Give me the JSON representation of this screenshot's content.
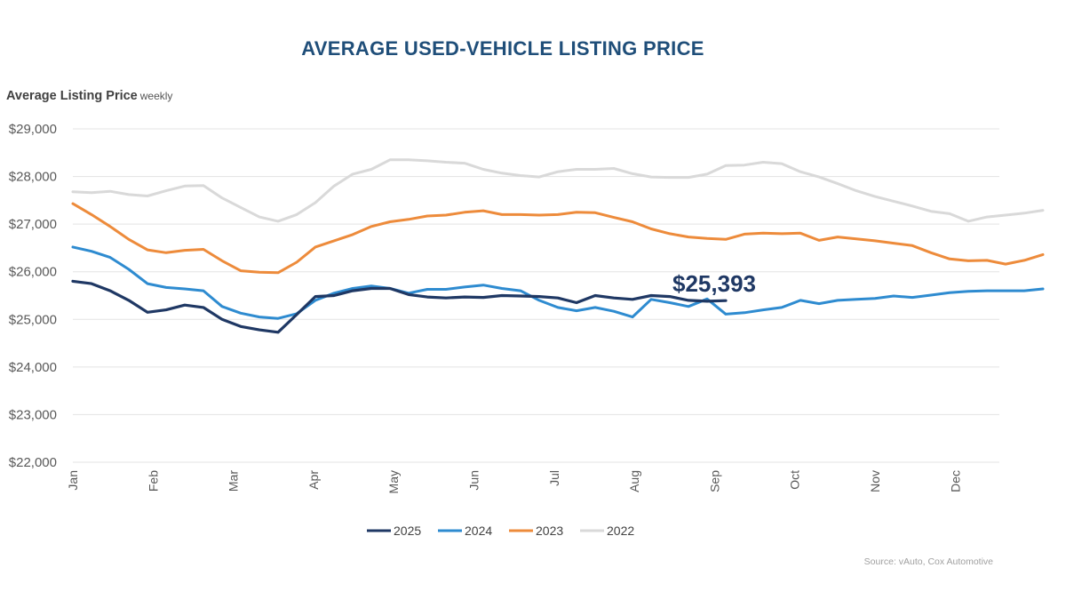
{
  "chart_data": {
    "type": "line",
    "title": "AVERAGE USED-VEHICLE LISTING PRICE",
    "ylabel_main": "Average Listing Price",
    "ylabel_sub": "weekly",
    "source": "Source: vAuto, Cox Automotive",
    "callout": "$25,393",
    "ylim": [
      22000,
      29000
    ],
    "y_ticks": [
      {
        "value": 22000,
        "label": "$22,000"
      },
      {
        "value": 23000,
        "label": "$23,000"
      },
      {
        "value": 24000,
        "label": "$24,000"
      },
      {
        "value": 25000,
        "label": "$25,000"
      },
      {
        "value": 26000,
        "label": "$26,000"
      },
      {
        "value": 27000,
        "label": "$27,000"
      },
      {
        "value": 28000,
        "label": "$28,000"
      },
      {
        "value": 29000,
        "label": "$29,000"
      }
    ],
    "months": [
      "Jan",
      "Feb",
      "Mar",
      "Apr",
      "May",
      "Jun",
      "Jul",
      "Aug",
      "Sep",
      "Oct",
      "Nov",
      "Dec"
    ],
    "weeks_per_month": 4.3,
    "legend_position": "bottom",
    "series": [
      {
        "name": "2025",
        "color": "#1f3864",
        "values": [
          25800,
          25750,
          25600,
          25400,
          25150,
          25200,
          25300,
          25250,
          25000,
          24850,
          24780,
          24730,
          25100,
          25480,
          25500,
          25600,
          25650,
          25650,
          25520,
          25470,
          25450,
          25470,
          25460,
          25500,
          25490,
          25480,
          25450,
          25350,
          25500,
          25450,
          25420,
          25500,
          25480,
          25400,
          25380,
          25393
        ]
      },
      {
        "name": "2024",
        "color": "#2e8bd0",
        "values": [
          26520,
          26430,
          26300,
          26050,
          25750,
          25670,
          25640,
          25600,
          25270,
          25130,
          25050,
          25020,
          25120,
          25400,
          25550,
          25650,
          25700,
          25650,
          25550,
          25630,
          25630,
          25680,
          25720,
          25650,
          25600,
          25400,
          25250,
          25180,
          25250,
          25170,
          25050,
          25420,
          25350,
          25270,
          25430,
          25110,
          25140,
          25200,
          25250,
          25400,
          25330,
          25400,
          25420,
          25440,
          25490,
          25460,
          25510,
          25560,
          25590,
          25600,
          25600,
          25600,
          25640
        ]
      },
      {
        "name": "2023",
        "color": "#ed8b3b",
        "values": [
          27430,
          27200,
          26950,
          26680,
          26460,
          26400,
          26450,
          26470,
          26230,
          26020,
          25990,
          25980,
          26200,
          26520,
          26650,
          26780,
          26950,
          27050,
          27100,
          27170,
          27190,
          27250,
          27280,
          27200,
          27200,
          27190,
          27200,
          27250,
          27240,
          27140,
          27050,
          26900,
          26800,
          26730,
          26700,
          26680,
          26790,
          26810,
          26800,
          26810,
          26660,
          26730,
          26690,
          26650,
          26600,
          26550,
          26400,
          26270,
          26230,
          26240,
          26160,
          26240,
          26360
        ]
      },
      {
        "name": "2022",
        "color": "#d9d9d9",
        "values": [
          27680,
          27660,
          27690,
          27620,
          27590,
          27700,
          27800,
          27810,
          27550,
          27350,
          27150,
          27060,
          27200,
          27450,
          27800,
          28050,
          28150,
          28350,
          28350,
          28330,
          28300,
          28280,
          28150,
          28070,
          28020,
          27990,
          28100,
          28150,
          28150,
          28170,
          28060,
          27990,
          27980,
          27980,
          28050,
          28230,
          28240,
          28300,
          28270,
          28100,
          27990,
          27850,
          27700,
          27580,
          27480,
          27380,
          27270,
          27220,
          27060,
          27150,
          27190,
          27230,
          27290
        ]
      }
    ]
  }
}
